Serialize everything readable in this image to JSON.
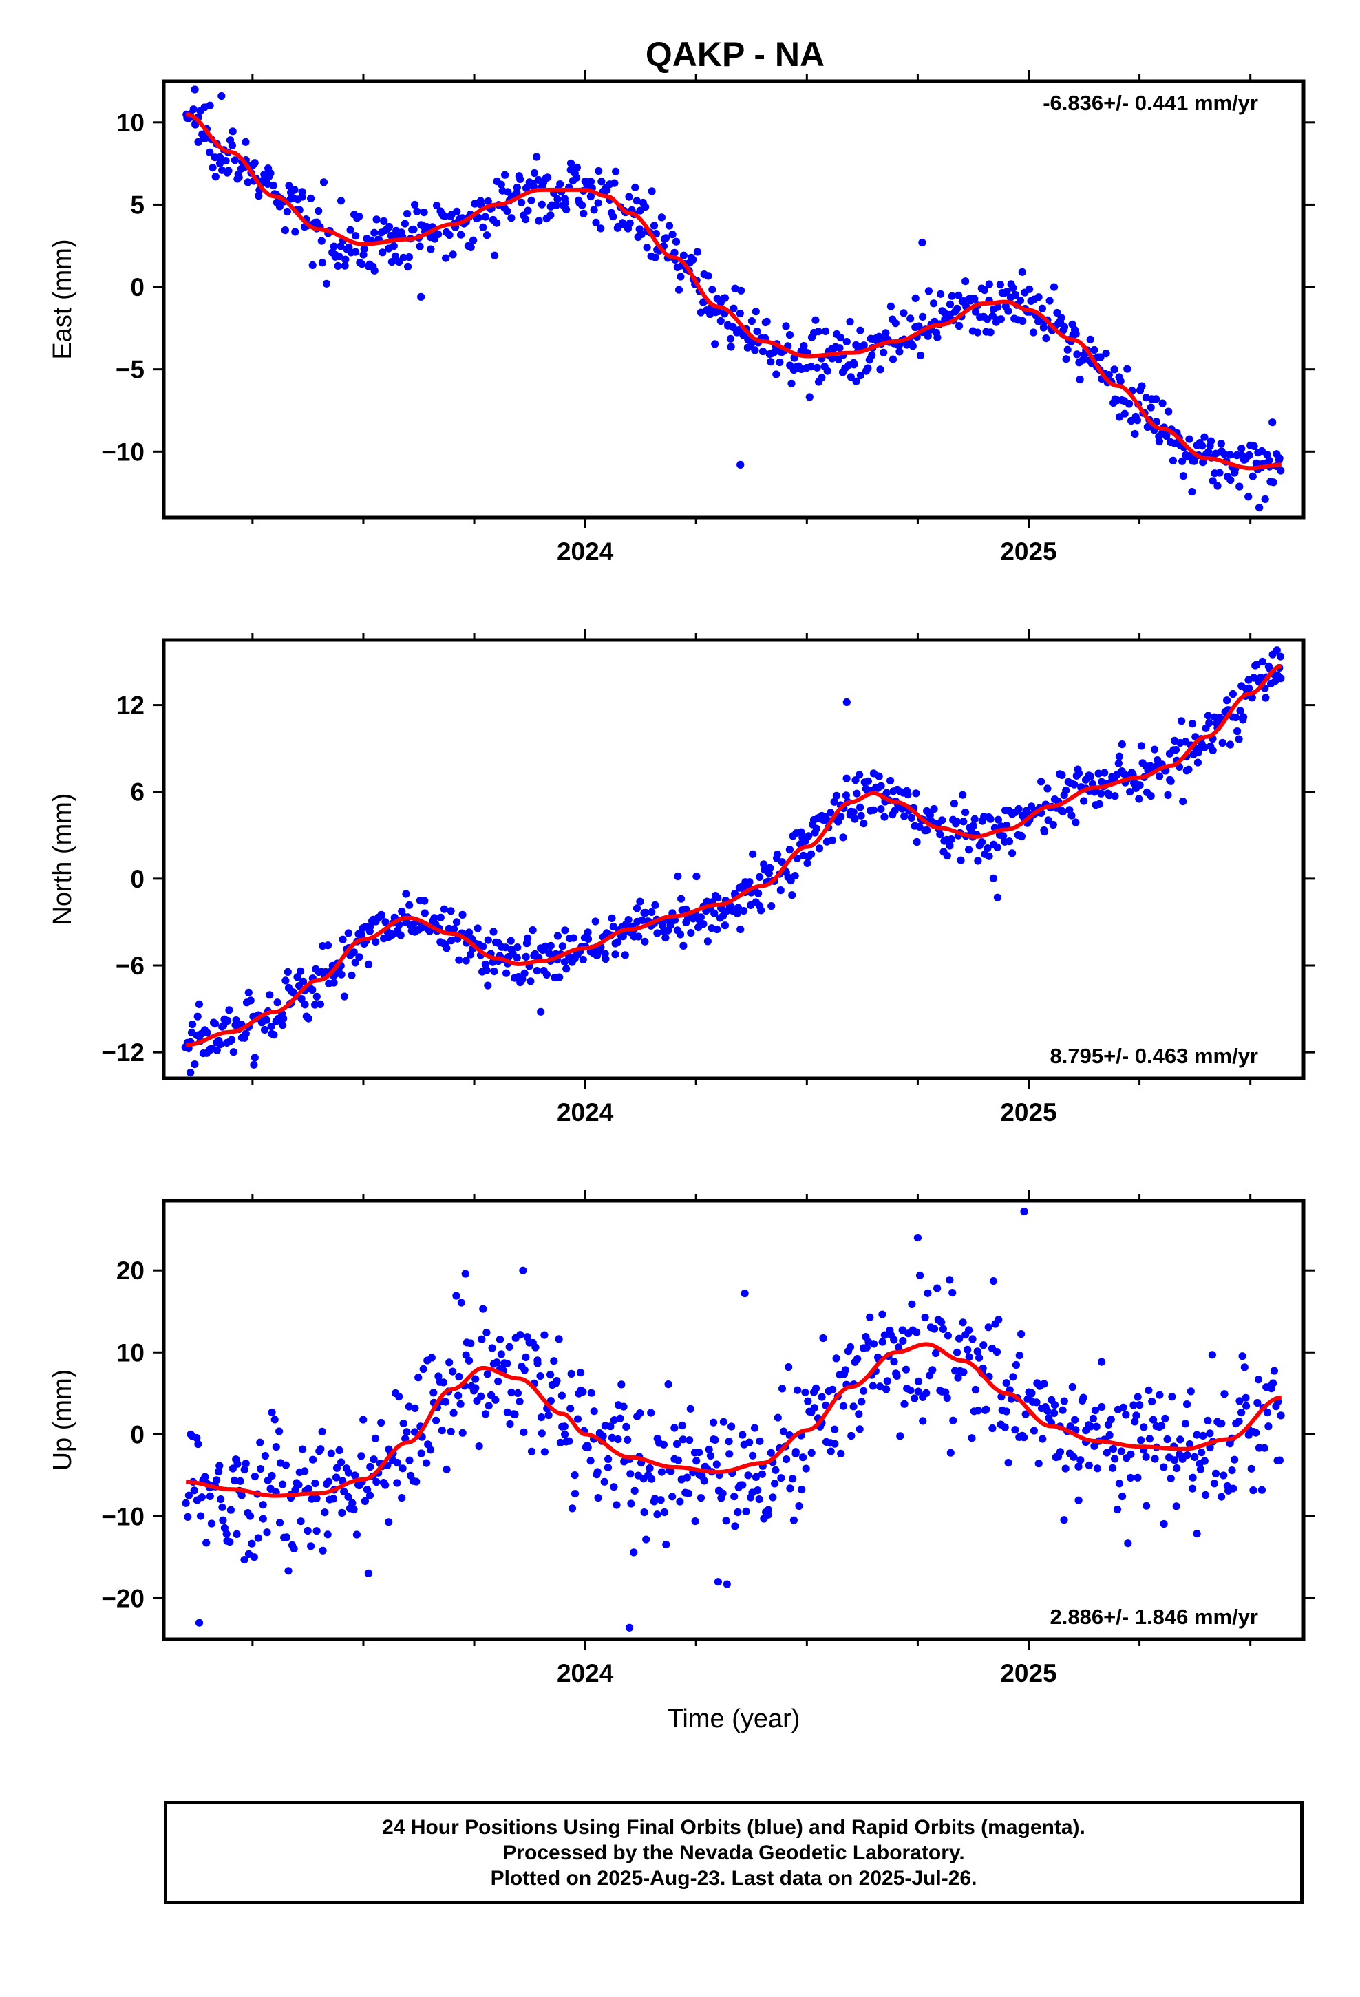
{
  "title": "QAKP - NA",
  "colors": {
    "final_orbits": "#0000ff",
    "fit_curve": "#ff0000",
    "axes": "#000000"
  },
  "chart_data": [
    {
      "type": "scatter",
      "panel": "east",
      "ylabel": "East (mm)",
      "xlabel": "",
      "ylim": [
        -14,
        12.5
      ],
      "xlim": [
        2023.05,
        2025.62
      ],
      "yticks": [
        10,
        5,
        0,
        -5,
        -10
      ],
      "ytick_labels": [
        "10",
        "5",
        "0",
        "−5",
        "−10"
      ],
      "xticks": [
        2024,
        2025
      ],
      "xtick_labels": [
        "2024",
        "2025"
      ],
      "rate_label": "-6.836+/- 0.441 mm/yr",
      "rate_position": "top-right",
      "trend_start": 10.5,
      "trend_end": -10.8,
      "noise_sd": 0.9,
      "trend_curve": [
        [
          2023.1,
          10.5
        ],
        [
          2023.2,
          8.2
        ],
        [
          2023.3,
          5.5
        ],
        [
          2023.4,
          3.5
        ],
        [
          2023.5,
          2.6
        ],
        [
          2023.6,
          2.9
        ],
        [
          2023.7,
          3.8
        ],
        [
          2023.8,
          5.0
        ],
        [
          2023.9,
          5.9
        ],
        [
          2024.0,
          5.9
        ],
        [
          2024.05,
          5.5
        ],
        [
          2024.1,
          4.5
        ],
        [
          2024.2,
          1.8
        ],
        [
          2024.3,
          -1.2
        ],
        [
          2024.4,
          -3.3
        ],
        [
          2024.5,
          -4.2
        ],
        [
          2024.6,
          -4.0
        ],
        [
          2024.7,
          -3.3
        ],
        [
          2024.8,
          -2.3
        ],
        [
          2024.9,
          -1.0
        ],
        [
          2024.95,
          -0.9
        ],
        [
          2025.0,
          -1.4
        ],
        [
          2025.1,
          -3.2
        ],
        [
          2025.2,
          -6.0
        ],
        [
          2025.3,
          -8.6
        ],
        [
          2025.4,
          -10.4
        ],
        [
          2025.5,
          -11.0
        ],
        [
          2025.57,
          -10.8
        ]
      ],
      "outliers": [
        [
          2024.35,
          -10.8
        ],
        [
          2025.52,
          -13.4
        ],
        [
          2023.12,
          12.0
        ],
        [
          2023.18,
          11.6
        ],
        [
          2023.63,
          -0.6
        ],
        [
          2024.76,
          2.7
        ]
      ]
    },
    {
      "type": "scatter",
      "panel": "north",
      "ylabel": "North (mm)",
      "xlabel": "",
      "ylim": [
        -13.8,
        16.5
      ],
      "xlim": [
        2023.05,
        2025.62
      ],
      "yticks": [
        12,
        6,
        0,
        -6,
        -12
      ],
      "ytick_labels": [
        "12",
        "6",
        "0",
        "−6",
        "−12"
      ],
      "xticks": [
        2024,
        2025
      ],
      "xtick_labels": [
        "2024",
        "2025"
      ],
      "rate_label": "8.795+/- 0.463 mm/yr",
      "rate_position": "bottom-right",
      "trend_start": -11.5,
      "trend_end": 14.7,
      "noise_sd": 1.0,
      "trend_curve": [
        [
          2023.1,
          -11.5
        ],
        [
          2023.2,
          -10.6
        ],
        [
          2023.3,
          -9.2
        ],
        [
          2023.4,
          -7.0
        ],
        [
          2023.5,
          -4.2
        ],
        [
          2023.6,
          -2.7
        ],
        [
          2023.7,
          -3.8
        ],
        [
          2023.8,
          -5.5
        ],
        [
          2023.85,
          -5.9
        ],
        [
          2023.9,
          -5.7
        ],
        [
          2024.0,
          -4.8
        ],
        [
          2024.1,
          -3.5
        ],
        [
          2024.2,
          -2.6
        ],
        [
          2024.3,
          -1.8
        ],
        [
          2024.4,
          -0.5
        ],
        [
          2024.5,
          2.2
        ],
        [
          2024.6,
          5.3
        ],
        [
          2024.65,
          5.9
        ],
        [
          2024.7,
          5.3
        ],
        [
          2024.8,
          3.5
        ],
        [
          2024.88,
          2.9
        ],
        [
          2024.95,
          3.4
        ],
        [
          2025.05,
          5.0
        ],
        [
          2025.15,
          6.3
        ],
        [
          2025.25,
          7.0
        ],
        [
          2025.32,
          7.8
        ],
        [
          2025.4,
          9.8
        ],
        [
          2025.5,
          12.8
        ],
        [
          2025.57,
          14.7
        ]
      ],
      "outliers": [
        [
          2024.59,
          12.2
        ],
        [
          2024.93,
          -1.3
        ],
        [
          2024.35,
          -3.5
        ],
        [
          2023.9,
          -9.2
        ],
        [
          2023.11,
          -13.4
        ],
        [
          2025.56,
          15.8
        ]
      ]
    },
    {
      "type": "scatter",
      "panel": "up",
      "ylabel": "Up (mm)",
      "xlabel": "Time (year)",
      "ylim": [
        -25,
        28.5
      ],
      "xlim": [
        2023.05,
        2025.62
      ],
      "yticks": [
        20,
        10,
        0,
        -10,
        -20
      ],
      "ytick_labels": [
        "20",
        "10",
        "0",
        "−10",
        "−20"
      ],
      "xticks": [
        2024,
        2025
      ],
      "xtick_labels": [
        "2024",
        "2025"
      ],
      "rate_label": "2.886+/- 1.846 mm/yr",
      "rate_position": "bottom-right",
      "trend_start": -5.8,
      "trend_end": 4.5,
      "noise_sd": 4.2,
      "trend_curve": [
        [
          2023.1,
          -5.8
        ],
        [
          2023.2,
          -6.7
        ],
        [
          2023.3,
          -7.5
        ],
        [
          2023.4,
          -7.2
        ],
        [
          2023.5,
          -5.5
        ],
        [
          2023.6,
          -1.0
        ],
        [
          2023.7,
          5.5
        ],
        [
          2023.77,
          8.1
        ],
        [
          2023.85,
          6.8
        ],
        [
          2023.95,
          2.5
        ],
        [
          2024.0,
          0.0
        ],
        [
          2024.1,
          -2.8
        ],
        [
          2024.2,
          -4.0
        ],
        [
          2024.3,
          -4.6
        ],
        [
          2024.4,
          -3.5
        ],
        [
          2024.5,
          0.5
        ],
        [
          2024.6,
          5.8
        ],
        [
          2024.7,
          10.0
        ],
        [
          2024.77,
          11.0
        ],
        [
          2024.85,
          9.0
        ],
        [
          2024.95,
          5.0
        ],
        [
          2025.05,
          1.0
        ],
        [
          2025.15,
          -0.8
        ],
        [
          2025.25,
          -1.5
        ],
        [
          2025.35,
          -1.8
        ],
        [
          2025.45,
          -0.6
        ],
        [
          2025.57,
          4.5
        ]
      ],
      "outliers": [
        [
          2024.99,
          27.2
        ],
        [
          2024.36,
          17.2
        ],
        [
          2024.1,
          -23.6
        ],
        [
          2024.3,
          -18.0
        ],
        [
          2023.13,
          -23.0
        ],
        [
          2024.75,
          24.0
        ],
        [
          2023.86,
          20.0
        ],
        [
          2023.73,
          19.6
        ]
      ]
    }
  ],
  "footer": {
    "line1": "24 Hour Positions Using Final Orbits (blue) and Rapid Orbits (magenta).",
    "line2": "Processed by the Nevada Geodetic Laboratory.",
    "line3": "Plotted on 2025-Aug-23. Last data on 2025-Jul-26."
  }
}
